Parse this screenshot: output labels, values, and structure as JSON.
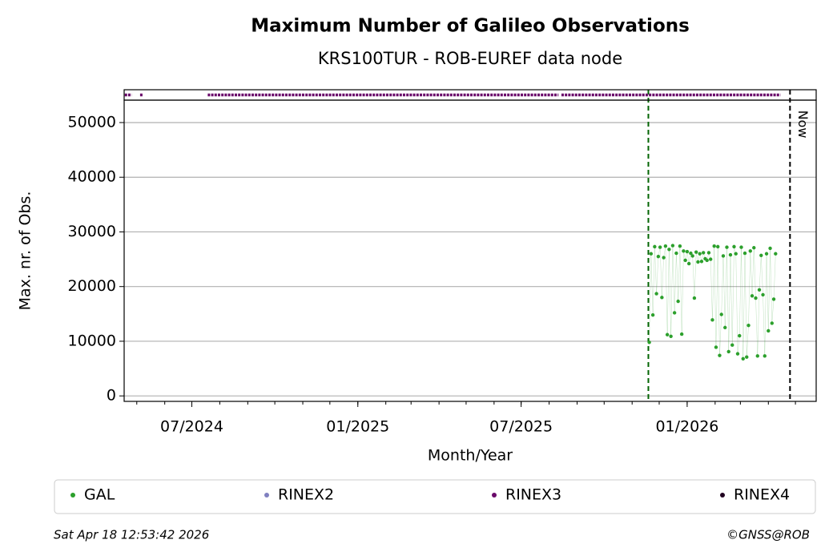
{
  "chart_data": {
    "type": "scatter",
    "title": "Maximum Number of Galileo Observations",
    "subtitle": "KRS100TUR - ROB-EUREF data node",
    "x_label": "Month/Year",
    "y_label": "Max. nr. of Obs.",
    "xlim": [
      "2024-04-17",
      "2026-05-24"
    ],
    "xticks": [
      {
        "value": "2024-07-01",
        "label": "07/2024"
      },
      {
        "value": "2025-01-01",
        "label": "01/2025"
      },
      {
        "value": "2025-07-01",
        "label": "07/2025"
      },
      {
        "value": "2026-01-01",
        "label": "01/2026"
      }
    ],
    "ylim": [
      -1000,
      54100
    ],
    "yticks": [
      0,
      10000,
      20000,
      30000,
      40000,
      50000
    ],
    "grid": true,
    "series": [
      {
        "name": "GAL",
        "color": "#2ca02c",
        "x": [
          "2025-11-20",
          "2025-11-22",
          "2025-11-24",
          "2025-11-26",
          "2025-11-28",
          "2025-11-30",
          "2025-12-02",
          "2025-12-04",
          "2025-12-06",
          "2025-12-08",
          "2025-12-10",
          "2025-12-12",
          "2025-12-14",
          "2025-12-16",
          "2025-12-18",
          "2025-12-20",
          "2025-12-22",
          "2025-12-24",
          "2025-12-26",
          "2025-12-28",
          "2025-12-30",
          "2026-01-01",
          "2026-01-03",
          "2026-01-05",
          "2026-01-07",
          "2026-01-09",
          "2026-01-11",
          "2026-01-13",
          "2026-01-15",
          "2026-01-17",
          "2026-01-19",
          "2026-01-21",
          "2026-01-23",
          "2026-01-25",
          "2026-01-27",
          "2026-01-29",
          "2026-01-31",
          "2026-02-02",
          "2026-02-04",
          "2026-02-06",
          "2026-02-08",
          "2026-02-10",
          "2026-02-12",
          "2026-02-14",
          "2026-02-16",
          "2026-02-18",
          "2026-02-20",
          "2026-02-22",
          "2026-02-24",
          "2026-02-26",
          "2026-02-28",
          "2026-03-02",
          "2026-03-04",
          "2026-03-06",
          "2026-03-08",
          "2026-03-10",
          "2026-03-12",
          "2026-03-14",
          "2026-03-16",
          "2026-03-18",
          "2026-03-20",
          "2026-03-22",
          "2026-03-24",
          "2026-03-26",
          "2026-03-28",
          "2026-03-30",
          "2026-04-01",
          "2026-04-03",
          "2026-04-05",
          "2026-04-07",
          "2026-04-09"
        ],
        "values": [
          9800,
          26000,
          14800,
          27300,
          18700,
          25500,
          27200,
          18000,
          25300,
          27400,
          11200,
          26800,
          10900,
          27500,
          15200,
          26100,
          17300,
          27400,
          11300,
          26500,
          24800,
          26400,
          24200,
          26100,
          25600,
          17900,
          26300,
          24500,
          26000,
          24600,
          26200,
          25100,
          24800,
          26200,
          25000,
          13900,
          27400,
          8900,
          27300,
          7400,
          14900,
          25600,
          12500,
          27200,
          8100,
          25800,
          9300,
          27300,
          26000,
          7700,
          11000,
          27200,
          6800,
          26100,
          7100,
          12900,
          26500,
          18300,
          27100,
          17900,
          7300,
          19400,
          25700,
          18500,
          7300,
          26000,
          11900,
          27000,
          13300,
          17700,
          26000
        ]
      },
      {
        "name": "RINEX2",
        "color": "#8080c0"
      },
      {
        "name": "RINEX3",
        "color": "#6a0a6a",
        "ranges": [
          [
            "2024-04-19",
            "2024-04-24"
          ],
          [
            "2024-05-06",
            "2024-05-06"
          ],
          [
            "2024-07-20",
            "2025-08-10"
          ],
          [
            "2025-08-16",
            "2026-04-13"
          ]
        ]
      },
      {
        "name": "RINEX4",
        "color": "#200020"
      }
    ],
    "start_line": {
      "x": "2025-11-19",
      "color": "#006400"
    },
    "now_line": {
      "x": "2026-04-25",
      "label": "Now",
      "color": "#000000"
    },
    "footer_left": "Sat Apr 18 12:53:42 2026",
    "footer_right": "©GNSS@ROB"
  }
}
